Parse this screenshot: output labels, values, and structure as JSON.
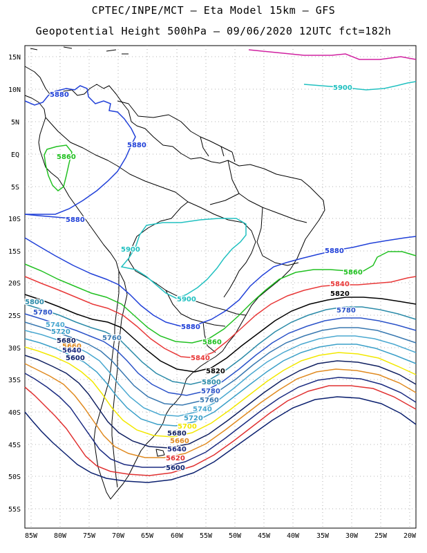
{
  "title_line1": "CPTEC/INPE/MCT –  Eta Model 15km – GFS",
  "title_line2": "Geopotential Height 500hPa – 09/06/2020 12UTC fct=182h",
  "lat_labels": [
    "15N",
    "10N",
    "5N",
    "EQ",
    "5S",
    "10S",
    "15S",
    "20S",
    "25S",
    "30S",
    "35S",
    "40S",
    "45S",
    "50S",
    "55S"
  ],
  "lon_labels": [
    "85W",
    "80W",
    "75W",
    "70W",
    "65W",
    "60W",
    "55W",
    "50W",
    "45W",
    "40W",
    "35W",
    "30W",
    "25W",
    "20W"
  ],
  "contour_labels": {
    "c5880_north": "5880",
    "c5880_amazon": "5880",
    "c5880_peru": "5880",
    "c5880_east": "5880",
    "c5880_south": "5880",
    "c5860_ecuador": "5860",
    "c5900_north": "5900",
    "c5900_bolivia": "5900",
    "c5900_brazil": "5900",
    "c5860_east": "5860",
    "c5860_south": "5860",
    "c5840_east": "5840",
    "c5840_south": "5840",
    "c5820_east": "5820",
    "c5820_south": "5820",
    "c5800_west": "5800",
    "c5800_south": "5800",
    "c5780_west": "5780",
    "c5780_east": "5780",
    "c5780_south": "5780",
    "c5760_south": "5760",
    "c5760_chile": "5760",
    "c5740_west": "5740",
    "c5740_south": "5740",
    "c5720_west": "5720",
    "c5720_south": "5720",
    "c5700_south": "5700",
    "c5680_west": "5680",
    "c5680_south": "5680",
    "c5660_west": "5660",
    "c5660_south": "5660",
    "c5640_west": "5640",
    "c5640_south": "5640",
    "c5620_south": "5620",
    "c5600_west": "5600",
    "c5600_south": "5600"
  },
  "colors": {
    "c5600": "#0a1f6e",
    "c5620": "#e03030",
    "c5640": "#1a2a80",
    "c5660": "#e08a20",
    "c5680": "#0f1f60",
    "c5700": "#f2e800",
    "c5720": "#3a9fc8",
    "c5740": "#4aa8d0",
    "c5760": "#3878b0",
    "c5780": "#2a52c8",
    "c5800": "#2a8aa8",
    "c5820": "#000000",
    "c5840": "#e83838",
    "c5860": "#20c020",
    "c5880": "#2040d8",
    "c5900": "#20c0c0",
    "c5920": "#d020a0"
  }
}
